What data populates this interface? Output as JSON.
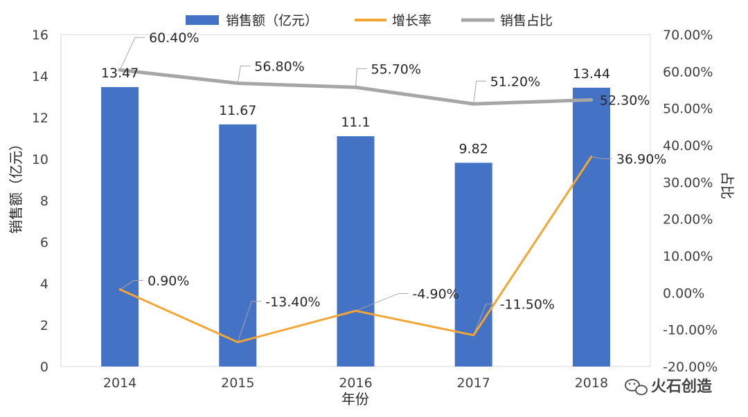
{
  "chart_data": {
    "type": "bar",
    "categories": [
      "2014",
      "2015",
      "2016",
      "2017",
      "2018"
    ],
    "xlabel": "年份",
    "ylabel": "销售额（亿元）",
    "y2label": "占比",
    "ylim": [
      0,
      16
    ],
    "ystep": 2,
    "y2lim": [
      -20,
      70
    ],
    "y2step": 10,
    "legend_position": "top",
    "grid": false,
    "series": [
      {
        "name": "销售额（亿元）",
        "type": "bar",
        "axis": "left",
        "color": "#4472C4",
        "values": [
          13.47,
          11.67,
          11.1,
          9.82,
          13.44
        ],
        "labels": [
          "13.47",
          "11.67",
          "11.1",
          "9.82",
          "13.44"
        ]
      },
      {
        "name": "增长率",
        "type": "line",
        "axis": "right",
        "color": "#F4A634",
        "values": [
          0.9,
          -13.4,
          -4.9,
          -11.5,
          36.9
        ],
        "labels": [
          "0.90%",
          "-13.40%",
          "-4.90%",
          "-11.50%",
          "36.90%"
        ]
      },
      {
        "name": "销售占比",
        "type": "line",
        "axis": "right",
        "color": "#A6A6A6",
        "values": [
          60.4,
          56.8,
          55.7,
          51.2,
          52.3
        ],
        "labels": [
          "60.40%",
          "56.80%",
          "55.70%",
          "51.20%",
          "52.30%"
        ]
      }
    ]
  },
  "watermark": {
    "text": "火石创造",
    "icon": "wechat-icon"
  }
}
